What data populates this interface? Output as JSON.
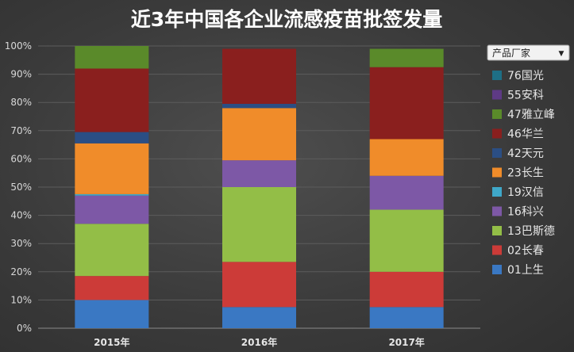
{
  "chart_data": {
    "type": "bar",
    "stacked": true,
    "normalized": true,
    "title": "近3年中国各企业流感疫苗批签发量",
    "categories": [
      "2015年",
      "2016年",
      "2017年"
    ],
    "y_ticks": [
      "0%",
      "10%",
      "20%",
      "30%",
      "40%",
      "50%",
      "60%",
      "70%",
      "80%",
      "90%",
      "100%"
    ],
    "ylim": [
      0,
      100
    ],
    "grid": true,
    "legend": {
      "position": "right",
      "filter_label": "产品厂家",
      "filter_arrow": "▼"
    },
    "series": [
      {
        "name": "01上生",
        "color": "#3a78c3",
        "values": [
          10,
          7.5,
          7.5
        ]
      },
      {
        "name": "02长春",
        "color": "#cc3b38",
        "values": [
          8.5,
          16,
          12.5
        ]
      },
      {
        "name": "13巴斯德",
        "color": "#93be47",
        "values": [
          18.5,
          26.5,
          22
        ]
      },
      {
        "name": "16科兴",
        "color": "#7d58a6",
        "values": [
          10,
          9.5,
          12
        ]
      },
      {
        "name": "19汉信",
        "color": "#3fa8c9",
        "values": [
          0.5,
          0,
          0
        ]
      },
      {
        "name": "23长生",
        "color": "#f08c2a",
        "values": [
          18,
          18.5,
          13
        ]
      },
      {
        "name": "42天元",
        "color": "#2b4e84",
        "values": [
          4,
          1.5,
          0
        ]
      },
      {
        "name": "46华兰",
        "color": "#8a1f1e",
        "values": [
          22.5,
          19.5,
          25.5
        ]
      },
      {
        "name": "47雅立峰",
        "color": "#5a8a2a",
        "values": [
          8,
          0,
          6.5
        ]
      },
      {
        "name": "55安科",
        "color": "#5e3a85",
        "values": [
          0,
          0,
          0
        ]
      },
      {
        "name": "76国光",
        "color": "#1e6f86",
        "values": [
          0,
          0,
          0
        ]
      }
    ]
  }
}
